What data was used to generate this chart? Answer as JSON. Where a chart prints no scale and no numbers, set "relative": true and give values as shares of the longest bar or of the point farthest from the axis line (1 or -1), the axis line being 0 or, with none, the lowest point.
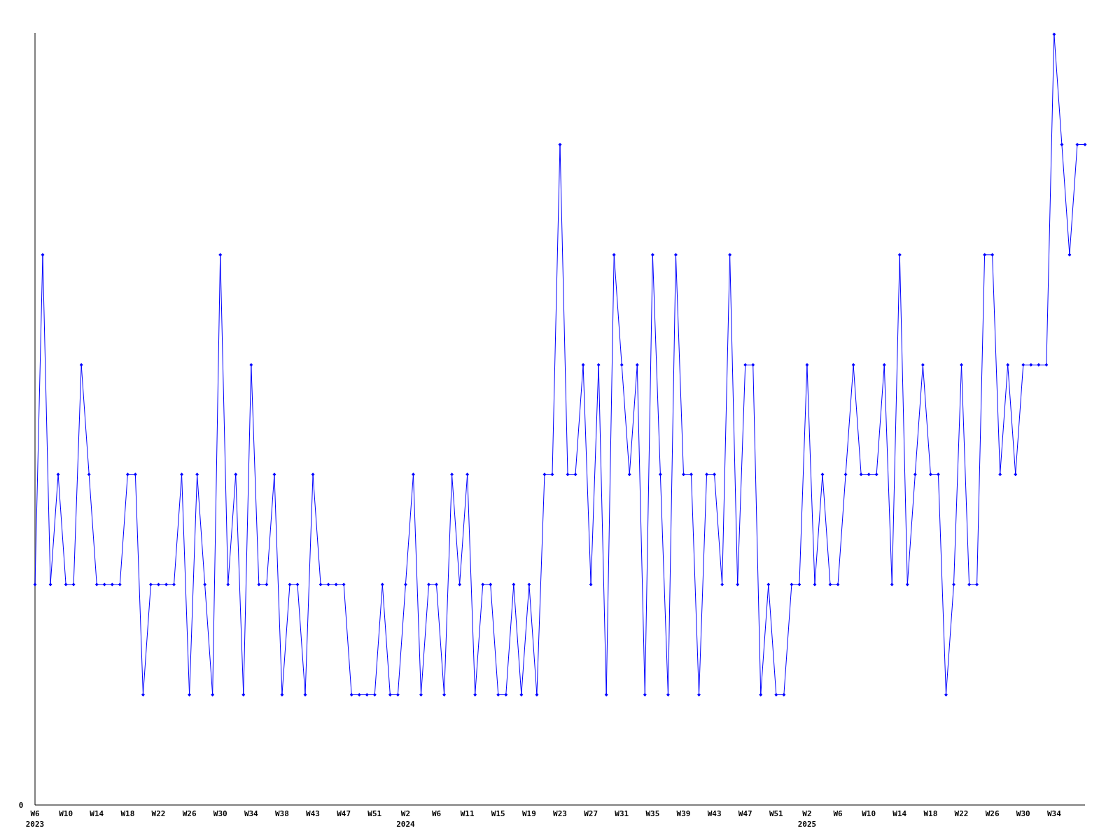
{
  "chart_data": {
    "type": "line",
    "relative": true,
    "marker": "diamond",
    "annotations": [
      "0"
    ],
    "categories": [
      "W6\n2023",
      null,
      null,
      null,
      "W10",
      null,
      null,
      null,
      "W14",
      null,
      null,
      null,
      "W18",
      null,
      null,
      null,
      "W22",
      null,
      null,
      null,
      "W26",
      null,
      null,
      null,
      "W30",
      null,
      null,
      null,
      "W34",
      null,
      null,
      null,
      "W38",
      null,
      null,
      null,
      "W43",
      null,
      null,
      null,
      "W47",
      null,
      null,
      null,
      "W51",
      null,
      null,
      null,
      "W2\n2024",
      null,
      null,
      null,
      "W6",
      null,
      null,
      null,
      "W11",
      null,
      null,
      null,
      "W15",
      null,
      null,
      null,
      "W19",
      null,
      null,
      null,
      "W23",
      null,
      null,
      null,
      "W27",
      null,
      null,
      null,
      "W31",
      null,
      null,
      null,
      "W35",
      null,
      null,
      null,
      "W39",
      null,
      null,
      null,
      "W43",
      null,
      null,
      null,
      "W47",
      null,
      null,
      null,
      "W51",
      null,
      null,
      null,
      "W2\n2025",
      null,
      null,
      null,
      "W6",
      null,
      null,
      null,
      "W10",
      null,
      null,
      null,
      "W14",
      null,
      null,
      null,
      "W18",
      null,
      null,
      null,
      "W22",
      null,
      null,
      null,
      "W26",
      null,
      null,
      null,
      "W30",
      null,
      null,
      null,
      "W34",
      null,
      null,
      null,
      null
    ],
    "series": [
      {
        "color": "#0000ff",
        "values": [
          0.286,
          0.714,
          0.286,
          0.429,
          0.286,
          0.286,
          0.571,
          0.429,
          0.286,
          0.286,
          0.286,
          0.286,
          0.429,
          0.429,
          0.143,
          0.286,
          0.286,
          0.286,
          0.286,
          0.429,
          0.143,
          0.429,
          0.286,
          0.143,
          0.714,
          0.286,
          0.429,
          0.143,
          0.571,
          0.286,
          0.286,
          0.429,
          0.143,
          0.286,
          0.286,
          0.143,
          0.429,
          0.286,
          0.286,
          0.286,
          0.286,
          0.143,
          0.143,
          0.143,
          0.143,
          0.286,
          0.143,
          0.143,
          0.286,
          0.429,
          0.143,
          0.286,
          0.286,
          0.143,
          0.429,
          0.286,
          0.429,
          0.143,
          0.286,
          0.286,
          0.143,
          0.143,
          0.286,
          0.143,
          0.286,
          0.143,
          0.429,
          0.429,
          0.857,
          0.429,
          0.429,
          0.571,
          0.286,
          0.571,
          0.143,
          0.714,
          0.571,
          0.429,
          0.571,
          0.143,
          0.714,
          0.429,
          0.143,
          0.714,
          0.429,
          0.429,
          0.143,
          0.429,
          0.429,
          0.286,
          0.714,
          0.286,
          0.571,
          0.571,
          0.143,
          0.286,
          0.143,
          0.143,
          0.286,
          0.286,
          0.571,
          0.286,
          0.429,
          0.286,
          0.286,
          0.429,
          0.571,
          0.429,
          0.429,
          0.429,
          0.571,
          0.286,
          0.714,
          0.286,
          0.429,
          0.571,
          0.429,
          0.429,
          0.143,
          0.286,
          0.571,
          0.286,
          0.286,
          0.714,
          0.714,
          0.429,
          0.571,
          0.429,
          0.571,
          0.571,
          0.571,
          0.571,
          1,
          0.857,
          0.714,
          0.857,
          0.857
        ]
      }
    ]
  }
}
